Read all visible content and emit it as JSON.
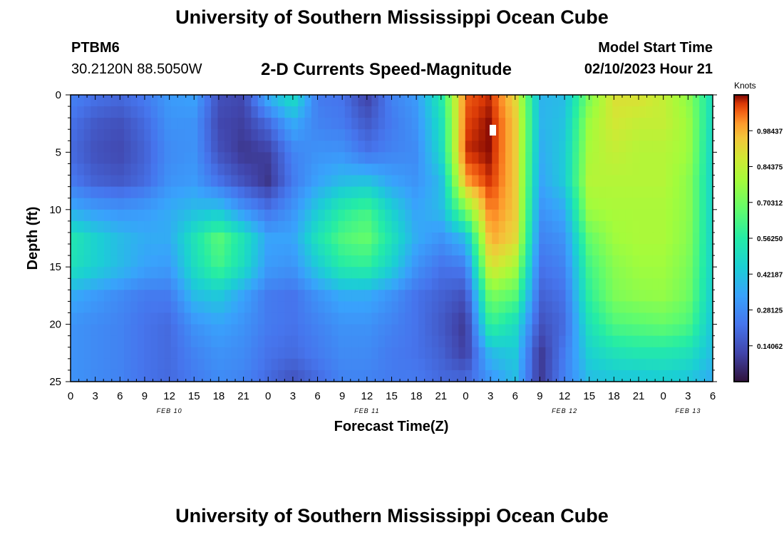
{
  "header": {
    "title": "University of Southern Mississippi Ocean Cube",
    "station": "PTBM6",
    "coords": "30.2120N  88.5050W",
    "subtitle": "2-D Currents Speed-Magnitude",
    "model_start_label": "Model Start Time",
    "model_start_value": "02/10/2023 Hour 21"
  },
  "footer": {
    "title": "University of Southern Mississippi Ocean Cube"
  },
  "chart_data": {
    "type": "heatmap",
    "title": "2-D Currents Speed-Magnitude",
    "xlabel": "Forecast Time(Z)",
    "ylabel": "Depth (ft)",
    "x_hours_range": [
      0,
      78
    ],
    "x_tick_labels": [
      "0",
      "3",
      "6",
      "9",
      "12",
      "15",
      "18",
      "21",
      "0",
      "3",
      "6",
      "9",
      "12",
      "15",
      "18",
      "21",
      "0",
      "3",
      "6",
      "9",
      "12",
      "15",
      "18",
      "21",
      "0",
      "3",
      "6"
    ],
    "date_labels": [
      {
        "hour": 12,
        "label": "FEB 10"
      },
      {
        "hour": 36,
        "label": "FEB 11"
      },
      {
        "hour": 60,
        "label": "FEB 12"
      },
      {
        "hour": 75,
        "label": "FEB 13"
      }
    ],
    "y_range": [
      0,
      25
    ],
    "y_tick_labels": [
      "0",
      "5",
      "10",
      "15",
      "20",
      "25"
    ],
    "colorbar": {
      "label": "Knots",
      "range": [
        0,
        1.125
      ],
      "ticks": [
        "0.14062",
        "0.28125",
        "0.42187",
        "0.56250",
        "0.70312",
        "0.84375",
        "0.98437"
      ]
    },
    "depth_levels_ft": [
      0,
      2.5,
      5,
      7.5,
      10,
      12.5,
      15,
      17.5,
      20,
      22.5,
      25
    ],
    "forecast_hours": [
      0,
      3,
      6,
      9,
      12,
      15,
      18,
      21,
      24,
      27,
      30,
      33,
      36,
      39,
      42,
      45,
      48,
      51,
      54,
      57,
      60,
      63,
      66,
      69,
      72,
      75,
      78
    ],
    "speed_knots": [
      [
        0.26,
        0.22,
        0.2,
        0.24,
        0.32,
        0.34,
        0.14,
        0.12,
        0.38,
        0.52,
        0.24,
        0.22,
        0.1,
        0.26,
        0.32,
        0.55,
        1.06,
        1.1,
        0.92,
        0.38,
        0.4,
        0.72,
        0.9,
        0.9,
        0.85,
        0.75,
        0.5
      ],
      [
        0.22,
        0.16,
        0.14,
        0.2,
        0.3,
        0.3,
        0.12,
        0.1,
        0.2,
        0.36,
        0.26,
        0.24,
        0.16,
        0.24,
        0.3,
        0.5,
        1.08,
        1.12,
        0.95,
        0.38,
        0.42,
        0.78,
        0.88,
        0.85,
        0.85,
        0.78,
        0.48
      ],
      [
        0.2,
        0.14,
        0.12,
        0.18,
        0.28,
        0.3,
        0.14,
        0.08,
        0.1,
        0.26,
        0.3,
        0.3,
        0.22,
        0.26,
        0.28,
        0.48,
        1.1,
        1.12,
        0.95,
        0.36,
        0.44,
        0.8,
        0.85,
        0.82,
        0.82,
        0.78,
        0.46
      ],
      [
        0.24,
        0.18,
        0.16,
        0.2,
        0.3,
        0.32,
        0.22,
        0.14,
        0.08,
        0.24,
        0.34,
        0.4,
        0.42,
        0.34,
        0.3,
        0.4,
        1.0,
        1.1,
        0.95,
        0.34,
        0.44,
        0.82,
        0.82,
        0.82,
        0.82,
        0.75,
        0.46
      ],
      [
        0.36,
        0.32,
        0.3,
        0.32,
        0.36,
        0.4,
        0.42,
        0.3,
        0.22,
        0.3,
        0.44,
        0.56,
        0.62,
        0.46,
        0.34,
        0.4,
        0.72,
        1.05,
        0.95,
        0.3,
        0.36,
        0.78,
        0.8,
        0.8,
        0.8,
        0.75,
        0.46
      ],
      [
        0.54,
        0.46,
        0.4,
        0.36,
        0.36,
        0.52,
        0.66,
        0.52,
        0.34,
        0.34,
        0.52,
        0.64,
        0.68,
        0.52,
        0.36,
        0.3,
        0.4,
        1.0,
        0.92,
        0.26,
        0.3,
        0.68,
        0.78,
        0.8,
        0.8,
        0.74,
        0.46
      ],
      [
        0.52,
        0.46,
        0.4,
        0.34,
        0.32,
        0.5,
        0.62,
        0.5,
        0.32,
        0.3,
        0.44,
        0.56,
        0.58,
        0.46,
        0.3,
        0.22,
        0.24,
        0.9,
        0.8,
        0.22,
        0.26,
        0.62,
        0.74,
        0.78,
        0.78,
        0.72,
        0.46
      ],
      [
        0.36,
        0.32,
        0.28,
        0.24,
        0.24,
        0.4,
        0.44,
        0.34,
        0.24,
        0.22,
        0.3,
        0.36,
        0.36,
        0.3,
        0.22,
        0.18,
        0.14,
        0.72,
        0.66,
        0.18,
        0.22,
        0.58,
        0.72,
        0.75,
        0.76,
        0.7,
        0.44
      ],
      [
        0.3,
        0.28,
        0.26,
        0.22,
        0.2,
        0.3,
        0.34,
        0.3,
        0.24,
        0.22,
        0.26,
        0.3,
        0.3,
        0.26,
        0.22,
        0.16,
        0.08,
        0.6,
        0.5,
        0.14,
        0.2,
        0.52,
        0.64,
        0.66,
        0.68,
        0.64,
        0.42
      ],
      [
        0.3,
        0.28,
        0.26,
        0.22,
        0.2,
        0.26,
        0.3,
        0.28,
        0.22,
        0.2,
        0.24,
        0.28,
        0.28,
        0.24,
        0.22,
        0.18,
        0.1,
        0.4,
        0.44,
        0.08,
        0.24,
        0.46,
        0.52,
        0.54,
        0.54,
        0.52,
        0.4
      ],
      [
        0.3,
        0.28,
        0.26,
        0.22,
        0.2,
        0.24,
        0.28,
        0.26,
        0.2,
        0.14,
        0.2,
        0.26,
        0.26,
        0.24,
        0.24,
        0.2,
        0.2,
        0.3,
        0.4,
        0.08,
        0.26,
        0.4,
        0.42,
        0.42,
        0.44,
        0.42,
        0.36
      ]
    ]
  }
}
